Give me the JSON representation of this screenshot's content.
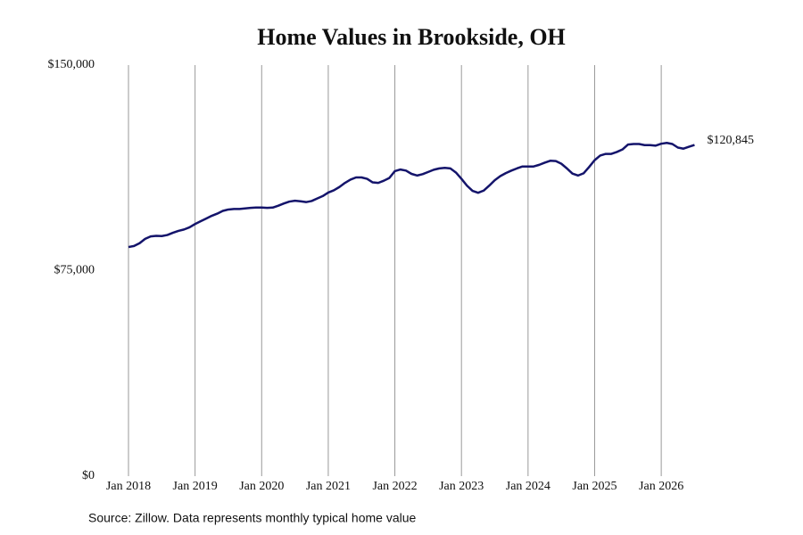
{
  "chart_data": {
    "type": "line",
    "title": "Home Values in Brookside, OH",
    "source": "Source: Zillow. Data represents monthly typical home value",
    "color": "#14146b",
    "x": [
      "2018-01",
      "2018-02",
      "2018-03",
      "2018-04",
      "2018-05",
      "2018-06",
      "2018-07",
      "2018-08",
      "2018-09",
      "2018-10",
      "2018-11",
      "2018-12",
      "2019-01",
      "2019-02",
      "2019-03",
      "2019-04",
      "2019-05",
      "2019-06",
      "2019-07",
      "2019-08",
      "2019-09",
      "2019-10",
      "2019-11",
      "2019-12",
      "2020-01",
      "2020-02",
      "2020-03",
      "2020-04",
      "2020-05",
      "2020-06",
      "2020-07",
      "2020-08",
      "2020-09",
      "2020-10",
      "2020-11",
      "2020-12",
      "2021-01",
      "2021-02",
      "2021-03",
      "2021-04",
      "2021-05",
      "2021-06",
      "2021-07",
      "2021-08",
      "2021-09",
      "2021-10",
      "2021-11",
      "2021-12",
      "2022-01",
      "2022-02",
      "2022-03",
      "2022-04",
      "2022-05",
      "2022-06",
      "2022-07",
      "2022-08",
      "2022-09",
      "2022-10",
      "2022-11",
      "2022-12",
      "2023-01",
      "2023-02",
      "2023-03",
      "2023-04",
      "2023-05",
      "2023-06",
      "2023-07",
      "2023-08",
      "2023-09",
      "2023-10",
      "2023-11",
      "2023-12",
      "2024-01",
      "2024-02",
      "2024-03",
      "2024-04",
      "2024-05",
      "2024-06",
      "2024-07",
      "2024-08",
      "2024-09",
      "2024-10",
      "2024-11",
      "2024-12",
      "2025-01",
      "2025-02",
      "2025-03",
      "2025-04",
      "2025-05",
      "2025-06",
      "2025-07",
      "2025-08",
      "2025-09",
      "2025-10",
      "2025-11",
      "2025-12",
      "2026-01",
      "2026-02",
      "2026-03",
      "2026-04",
      "2026-05",
      "2026-06",
      "2026-07"
    ],
    "values": [
      83600,
      84000,
      85000,
      86600,
      87500,
      87700,
      87600,
      88000,
      88800,
      89500,
      90000,
      90800,
      92000,
      93000,
      94000,
      95000,
      95800,
      96800,
      97300,
      97500,
      97500,
      97700,
      97900,
      98000,
      98000,
      97900,
      98000,
      98700,
      99500,
      100200,
      100500,
      100300,
      100000,
      100400,
      101300,
      102200,
      103500,
      104300,
      105500,
      107000,
      108200,
      109000,
      109000,
      108500,
      107200,
      107000,
      107800,
      108800,
      111300,
      111900,
      111500,
      110300,
      109700,
      110200,
      111000,
      111800,
      112300,
      112500,
      112300,
      110800,
      108500,
      106000,
      104100,
      103400,
      104200,
      106000,
      108000,
      109500,
      110600,
      111500,
      112300,
      113000,
      113000,
      113000,
      113600,
      114400,
      115100,
      115000,
      114000,
      112300,
      110400,
      109700,
      110500,
      112800,
      115300,
      117000,
      117600,
      117600,
      118300,
      119200,
      121000,
      121200,
      121200,
      120800,
      120800,
      120600,
      121300,
      121600,
      121200,
      119900,
      119500,
      120200,
      120845
    ],
    "last_value_label": "$120,845",
    "ylim": [
      0,
      150000
    ],
    "yticks": [
      {
        "value": 0,
        "label": "$0"
      },
      {
        "value": 75000,
        "label": "$75,000"
      },
      {
        "value": 150000,
        "label": "$150,000"
      }
    ],
    "xticks": [
      {
        "value": "2018-01",
        "label": "Jan 2018"
      },
      {
        "value": "2019-01",
        "label": "Jan 2019"
      },
      {
        "value": "2020-01",
        "label": "Jan 2020"
      },
      {
        "value": "2021-01",
        "label": "Jan 2021"
      },
      {
        "value": "2022-01",
        "label": "Jan 2022"
      },
      {
        "value": "2023-01",
        "label": "Jan 2023"
      },
      {
        "value": "2024-01",
        "label": "Jan 2024"
      },
      {
        "value": "2025-01",
        "label": "Jan 2025"
      },
      {
        "value": "2026-01",
        "label": "Jan 2026"
      }
    ],
    "grid": true
  }
}
